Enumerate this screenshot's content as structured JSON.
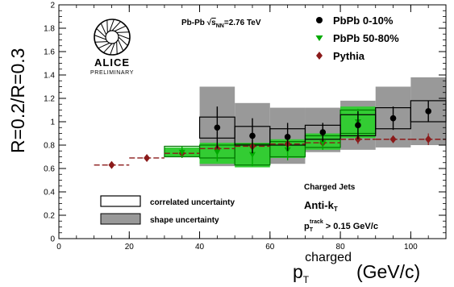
{
  "chart_data": {
    "type": "scatter",
    "collaboration": "ALICE",
    "status": "PRELIMINARY",
    "ylabel": "R=0.2/R=0.3",
    "xlabel_main": "p",
    "xlabel_sub": "T",
    "xlabel_sup": "charged",
    "xlabel_unit": "(GeV/c)",
    "xlim": [
      0,
      110
    ],
    "ylim": [
      0,
      2
    ],
    "xticks": [
      0,
      20,
      40,
      60,
      80,
      100
    ],
    "yticks": [
      0,
      0.2,
      0.4,
      0.6,
      0.8,
      1,
      1.2,
      1.4,
      1.6,
      1.8,
      2
    ],
    "ytick_labels": [
      "0",
      "0.2",
      "0.4",
      "0.6",
      "0.8",
      "1",
      "1.2",
      "1.4",
      "1.6",
      "1.8",
      "2"
    ],
    "system_label": {
      "pre": "Pb-Pb ",
      "sqrt": "√",
      "s": "s",
      "sub": "NN",
      "post": "=2.76 TeV"
    },
    "series": [
      {
        "name": "PbPb 0-10%",
        "color": "#000000",
        "marker": "circle",
        "points": [
          {
            "x": 45,
            "y": 0.95,
            "err": 0.18,
            "xlo": 40,
            "xhi": 50,
            "corr": [
              0.86,
              1.04
            ],
            "shape": [
              0.62,
              1.3
            ]
          },
          {
            "x": 55,
            "y": 0.88,
            "err": 0.15,
            "xlo": 50,
            "xhi": 60,
            "corr": [
              0.8,
              0.96
            ],
            "shape": [
              0.64,
              1.16
            ]
          },
          {
            "x": 65,
            "y": 0.87,
            "err": 0.12,
            "xlo": 60,
            "xhi": 70,
            "corr": [
              0.8,
              0.94
            ],
            "shape": [
              0.64,
              1.12
            ]
          },
          {
            "x": 75,
            "y": 0.91,
            "err": 0.08,
            "xlo": 70,
            "xhi": 80,
            "corr": [
              0.85,
              0.97
            ],
            "shape": [
              0.74,
              1.12
            ]
          },
          {
            "x": 85,
            "y": 0.97,
            "err": 0.12,
            "xlo": 80,
            "xhi": 90,
            "corr": [
              0.88,
              1.06
            ],
            "shape": [
              0.76,
              1.18
            ]
          },
          {
            "x": 95,
            "y": 1.03,
            "err": 0.1,
            "xlo": 90,
            "xhi": 100,
            "corr": [
              0.94,
              1.12
            ],
            "shape": [
              0.78,
              1.3
            ]
          },
          {
            "x": 105,
            "y": 1.09,
            "err": 0.09,
            "xlo": 100,
            "xhi": 110,
            "corr": [
              1.0,
              1.18
            ],
            "shape": [
              0.8,
              1.38
            ]
          }
        ]
      },
      {
        "name": "PbPb 50-80%",
        "color": "#00aa00",
        "marker": "triangle-down",
        "points": [
          {
            "x": 35,
            "y": 0.74,
            "err": 0.05,
            "xlo": 30,
            "xhi": 40,
            "corr": [
              0.7,
              0.79
            ],
            "shape": [
              0.7,
              0.78
            ]
          },
          {
            "x": 45,
            "y": 0.74,
            "err": 0.08,
            "xlo": 40,
            "xhi": 50,
            "corr": [
              0.69,
              0.8
            ],
            "shape": [
              0.64,
              0.82
            ]
          },
          {
            "x": 55,
            "y": 0.72,
            "err": 0.1,
            "xlo": 50,
            "xhi": 60,
            "corr": [
              0.63,
              0.81
            ],
            "shape": [
              0.61,
              0.82
            ]
          },
          {
            "x": 65,
            "y": 0.76,
            "err": 0.09,
            "xlo": 60,
            "xhi": 70,
            "corr": [
              0.7,
              0.83
            ],
            "shape": [
              0.69,
              0.85
            ]
          },
          {
            "x": 75,
            "y": 0.82,
            "err": 0.06,
            "xlo": 70,
            "xhi": 80,
            "corr": [
              0.78,
              0.88
            ],
            "shape": [
              0.76,
              0.9
            ]
          },
          {
            "x": 85,
            "y": 1.0,
            "err": 0.11,
            "xlo": 80,
            "xhi": 90,
            "corr": [
              0.9,
              1.1
            ],
            "shape": [
              0.86,
              1.13
            ]
          }
        ]
      },
      {
        "name": "Pythia",
        "color": "#8b1a1a",
        "marker": "diamond",
        "points": [
          {
            "x": 15,
            "y": 0.63,
            "err": 0.02,
            "xlo": 10,
            "xhi": 20
          },
          {
            "x": 25,
            "y": 0.69,
            "err": 0.02,
            "xlo": 20,
            "xhi": 30
          },
          {
            "x": 35,
            "y": 0.73,
            "err": 0.04,
            "xlo": 30,
            "xhi": 40
          },
          {
            "x": 45,
            "y": 0.77,
            "err": 0.05,
            "xlo": 40,
            "xhi": 50
          },
          {
            "x": 55,
            "y": 0.79,
            "err": 0.05,
            "xlo": 50,
            "xhi": 60
          },
          {
            "x": 65,
            "y": 0.81,
            "err": 0.04,
            "xlo": 60,
            "xhi": 70
          },
          {
            "x": 75,
            "y": 0.82,
            "err": 0.05,
            "xlo": 70,
            "xhi": 80
          },
          {
            "x": 85,
            "y": 0.85,
            "err": 0.04,
            "xlo": 80,
            "xhi": 90
          },
          {
            "x": 95,
            "y": 0.85,
            "err": 0.03,
            "xlo": 90,
            "xhi": 100
          },
          {
            "x": 105,
            "y": 0.85,
            "err": 0.05,
            "xlo": 100,
            "xhi": 110
          }
        ]
      }
    ],
    "legend_top": {
      "placement": "top-right",
      "items": [
        "PbPb 0-10%",
        "PbPb 50-80%",
        "Pythia"
      ]
    },
    "legend_bottom": {
      "placement": "bottom-left",
      "items": [
        "correlated uncertainty",
        "shape uncertainty"
      ]
    },
    "annotations": {
      "charged_jets": "Charged Jets",
      "antikt_main": "Anti-k",
      "antikt_sub": "T",
      "track_p": "p",
      "track_sub": "T",
      "track_sup": "track",
      "track_cut": " > 0.15 GeV/c"
    },
    "shape_color": "#999999",
    "green_fill": "#33cc33"
  }
}
